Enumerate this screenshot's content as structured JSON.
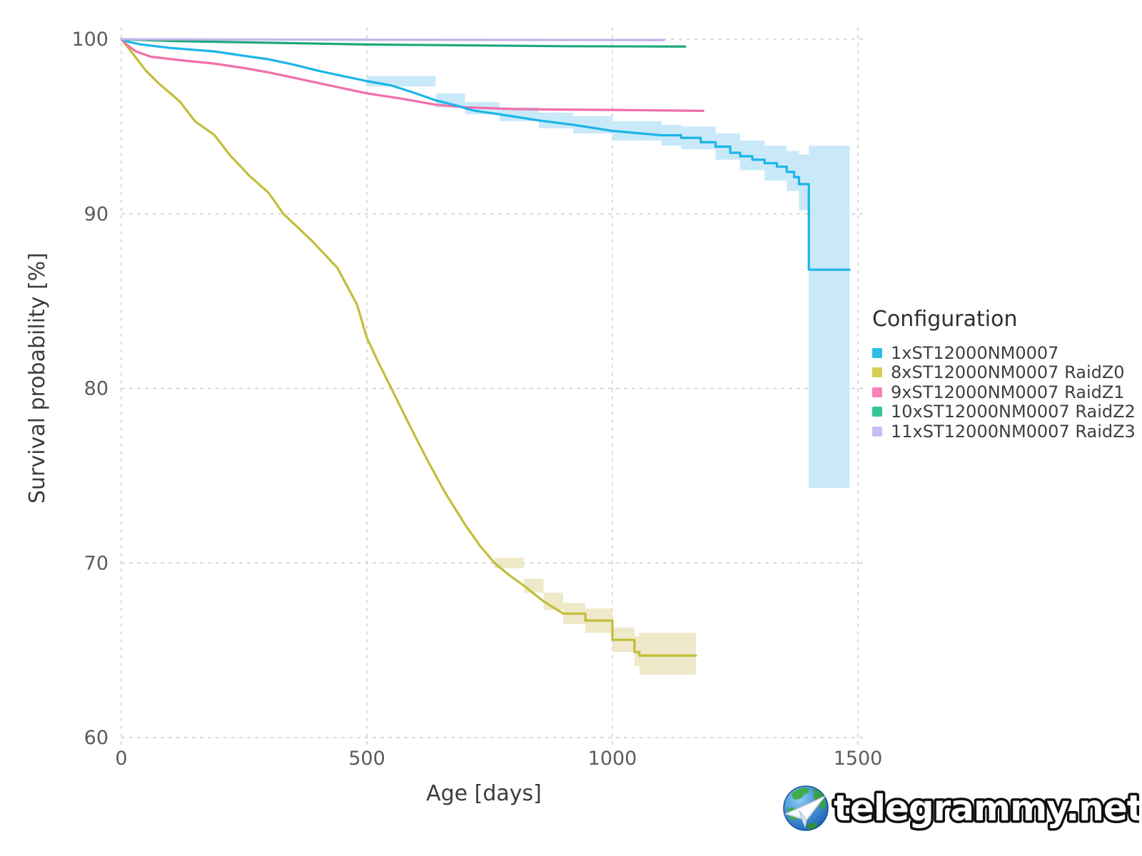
{
  "figure": {
    "background": "#ffffff"
  },
  "legend": {
    "title": "Configuration",
    "items": [
      {
        "label": "1xST12000NM0007",
        "color": "#2bbfe9"
      },
      {
        "label": "8xST12000NM0007 RaidZ0",
        "color": "#d8cf52"
      },
      {
        "label": "9xST12000NM0007 RaidZ1",
        "color": "#f583b8"
      },
      {
        "label": "10xST12000NM0007 RaidZ2",
        "color": "#36c495"
      },
      {
        "label": "11xST12000NM0007 RaidZ3",
        "color": "#cabdf4"
      }
    ]
  },
  "watermark": {
    "text": "telegrammy.net",
    "logo": "globe-paper-plane-icon"
  },
  "axes_text": {
    "x_tick_labels": [
      "0",
      "500",
      "1000",
      "1500"
    ],
    "y_tick_labels": [
      "100",
      "90",
      "80",
      "70",
      "60"
    ]
  },
  "chart_data": {
    "type": "line",
    "title": "",
    "xlabel": "Age [days]",
    "ylabel": "Survival probability [%]",
    "xlim": [
      0,
      1500
    ],
    "ylim": [
      60,
      100
    ],
    "x_ticks": [
      0,
      500,
      1000,
      1500
    ],
    "y_ticks": [
      100,
      90,
      80,
      70,
      60
    ],
    "grid": "dashed",
    "grid_color": "#cfcfcf",
    "tick_color": "#5c5c5c",
    "axis_title_color": "#3d3d3d",
    "legend_position": "right",
    "series": [
      {
        "name": "8xST12000NM0007 RaidZ0",
        "color": "#c3bd3a",
        "band_color": "#ece7c2",
        "step_from": 880,
        "points": [
          [
            0,
            100
          ],
          [
            20,
            99.3
          ],
          [
            50,
            98.2
          ],
          [
            75,
            97.5
          ],
          [
            100,
            96.9
          ],
          [
            120,
            96.4
          ],
          [
            150,
            95.3
          ],
          [
            190,
            94.5
          ],
          [
            220,
            93.4
          ],
          [
            260,
            92.2
          ],
          [
            300,
            91.2
          ],
          [
            330,
            90.0
          ],
          [
            360,
            89.2
          ],
          [
            390,
            88.4
          ],
          [
            440,
            86.9
          ],
          [
            480,
            84.8
          ],
          [
            500,
            82.9
          ],
          [
            525,
            81.4
          ],
          [
            550,
            80.0
          ],
          [
            585,
            78.0
          ],
          [
            625,
            75.8
          ],
          [
            660,
            74.0
          ],
          [
            700,
            72.2
          ],
          [
            730,
            71.0
          ],
          [
            760,
            70.0
          ],
          [
            790,
            69.3
          ],
          [
            820,
            68.7
          ],
          [
            860,
            67.8
          ],
          [
            900,
            67.1
          ],
          [
            945,
            66.7
          ],
          [
            1000,
            65.6
          ],
          [
            1045,
            64.9
          ],
          [
            1055,
            64.7
          ],
          [
            1170,
            64.7
          ]
        ],
        "band": [
          [
            760,
            69.7,
            70.3
          ],
          [
            820,
            68.3,
            69.1
          ],
          [
            860,
            67.3,
            68.3
          ],
          [
            900,
            66.5,
            67.7
          ],
          [
            945,
            66.0,
            67.4
          ],
          [
            1000,
            64.9,
            66.3
          ],
          [
            1045,
            64.1,
            65.8
          ],
          [
            1055,
            63.6,
            66.0
          ],
          [
            1170,
            63.6,
            66.0
          ]
        ]
      },
      {
        "name": "9xST12000NM0007 RaidZ1",
        "color": "#ef6fa9",
        "points": [
          [
            0,
            100
          ],
          [
            15,
            99.6
          ],
          [
            30,
            99.3
          ],
          [
            60,
            99.0
          ],
          [
            120,
            98.8
          ],
          [
            190,
            98.6
          ],
          [
            250,
            98.35
          ],
          [
            300,
            98.1
          ],
          [
            350,
            97.8
          ],
          [
            400,
            97.5
          ],
          [
            450,
            97.2
          ],
          [
            500,
            96.9
          ],
          [
            570,
            96.6
          ],
          [
            640,
            96.25
          ],
          [
            700,
            96.1
          ],
          [
            800,
            96.0
          ],
          [
            900,
            95.97
          ],
          [
            1000,
            95.95
          ],
          [
            1185,
            95.9
          ]
        ]
      },
      {
        "name": "1xST12000NM0007",
        "color": "#1cb5e8",
        "band_color": "#c3e7f8",
        "step_from": 1100,
        "points": [
          [
            0,
            100
          ],
          [
            15,
            99.85
          ],
          [
            40,
            99.7
          ],
          [
            100,
            99.5
          ],
          [
            190,
            99.3
          ],
          [
            250,
            99.05
          ],
          [
            300,
            98.85
          ],
          [
            350,
            98.55
          ],
          [
            400,
            98.2
          ],
          [
            450,
            97.9
          ],
          [
            500,
            97.6
          ],
          [
            550,
            97.35
          ],
          [
            600,
            96.9
          ],
          [
            640,
            96.5
          ],
          [
            683,
            96.2
          ],
          [
            700,
            96.05
          ],
          [
            720,
            95.9
          ],
          [
            770,
            95.7
          ],
          [
            850,
            95.35
          ],
          [
            920,
            95.1
          ],
          [
            1000,
            94.75
          ],
          [
            1060,
            94.6
          ],
          [
            1100,
            94.5
          ],
          [
            1140,
            94.35
          ],
          [
            1180,
            94.1
          ],
          [
            1210,
            93.85
          ],
          [
            1240,
            93.5
          ],
          [
            1260,
            93.3
          ],
          [
            1285,
            93.1
          ],
          [
            1310,
            92.9
          ],
          [
            1335,
            92.7
          ],
          [
            1355,
            92.4
          ],
          [
            1370,
            92.1
          ],
          [
            1380,
            91.7
          ],
          [
            1400,
            86.8
          ],
          [
            1483,
            86.8
          ]
        ],
        "band": [
          [
            500,
            97.3,
            97.9
          ],
          [
            640,
            96.1,
            96.9
          ],
          [
            700,
            95.7,
            96.4
          ],
          [
            770,
            95.3,
            96.1
          ],
          [
            850,
            94.9,
            95.8
          ],
          [
            920,
            94.6,
            95.6
          ],
          [
            1000,
            94.2,
            95.3
          ],
          [
            1100,
            93.9,
            95.1
          ],
          [
            1140,
            93.7,
            95.0
          ],
          [
            1210,
            93.1,
            94.6
          ],
          [
            1260,
            92.5,
            94.2
          ],
          [
            1310,
            91.9,
            93.9
          ],
          [
            1355,
            91.3,
            93.6
          ],
          [
            1380,
            90.2,
            93.4
          ],
          [
            1400,
            74.3,
            93.9
          ],
          [
            1483,
            74.3,
            93.9
          ]
        ]
      },
      {
        "name": "10xST12000NM0007 RaidZ2",
        "color": "#1da87d",
        "points": [
          [
            0,
            100
          ],
          [
            100,
            99.9
          ],
          [
            300,
            99.8
          ],
          [
            500,
            99.7
          ],
          [
            700,
            99.65
          ],
          [
            900,
            99.6
          ],
          [
            1148,
            99.58
          ]
        ]
      },
      {
        "name": "11xST12000NM0007 RaidZ3",
        "color": "#c3b4ec",
        "points": [
          [
            0,
            100
          ],
          [
            500,
            99.97
          ],
          [
            1105,
            99.95
          ]
        ]
      }
    ]
  }
}
